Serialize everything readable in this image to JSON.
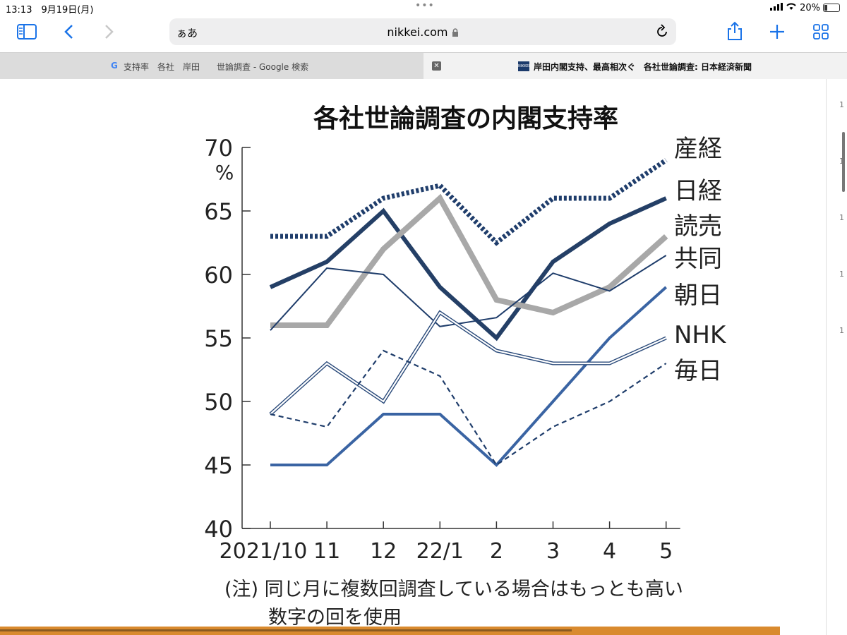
{
  "status": {
    "time": "13:13",
    "date": "9月19日(月)",
    "battery": "20%"
  },
  "browser": {
    "aa_label": "ぁあ",
    "url": "nikkei.com",
    "tabs": [
      {
        "title": "支持率　各社　岸田　　世論調査 - Google 検索"
      },
      {
        "title": "岸田内閣支持、最高相次ぐ　各社世論調査: 日本経済新聞"
      }
    ]
  },
  "chart_data": {
    "type": "line",
    "title": "各社世論調査の内閣支持率",
    "ylabel": "%",
    "ylim": [
      40,
      70
    ],
    "yticks": [
      40,
      45,
      50,
      55,
      60,
      65,
      70
    ],
    "categories": [
      "2021/10",
      "11",
      "12",
      "22/1",
      "2",
      "3",
      "4",
      "5"
    ],
    "series": [
      {
        "name": "産経",
        "values": [
          63,
          63,
          66,
          67,
          62.5,
          66,
          66,
          69
        ],
        "color": "#1f3d6b",
        "style": "dotted"
      },
      {
        "name": "日経",
        "values": [
          59,
          61,
          65,
          59,
          55,
          61,
          64,
          66
        ],
        "color": "#243f66",
        "style": "thick"
      },
      {
        "name": "読売",
        "values": [
          56,
          56,
          62,
          66,
          58,
          57,
          59,
          63
        ],
        "color": "#a8a8a8",
        "style": "thick-gray"
      },
      {
        "name": "共同",
        "values": [
          55.6,
          60.5,
          60,
          55.9,
          56.6,
          60.1,
          58.7,
          61.5
        ],
        "color": "#1f3d6b",
        "style": "thin"
      },
      {
        "name": "朝日",
        "values": [
          45,
          45,
          49,
          49,
          45,
          50,
          55,
          59
        ],
        "color": "#3a64a3",
        "style": "medium"
      },
      {
        "name": "NHK",
        "values": [
          49,
          53,
          50,
          57,
          54,
          53,
          53,
          55
        ],
        "color": "#2a4a7a",
        "style": "outline"
      },
      {
        "name": "毎日",
        "values": [
          49,
          48,
          54,
          52,
          45,
          48,
          50,
          53
        ],
        "color": "#1f3d6b",
        "style": "dashed"
      }
    ],
    "note_lines": [
      "(注) 同じ月に複数回調査している場合はもっとも高い",
      "数字の回を使用"
    ],
    "grid": false
  }
}
